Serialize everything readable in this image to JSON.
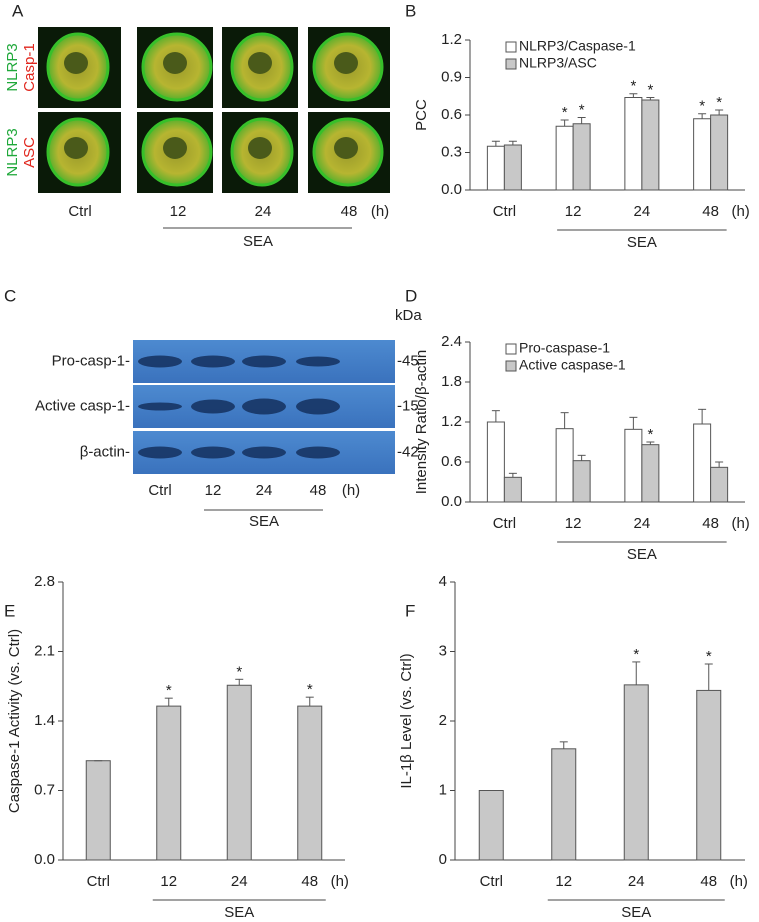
{
  "panel_a": {
    "label": "A",
    "rows": [
      [
        "NLRP3",
        "Casp-1"
      ],
      [
        "NLRP3",
        "ASC"
      ]
    ],
    "categories": [
      "Ctrl",
      "12",
      "24",
      "48"
    ],
    "unit": "(h)",
    "group_label": "SEA"
  },
  "panel_c": {
    "label": "C",
    "size_unit": "kDa",
    "rows": [
      {
        "name": "Pro-casp-1-",
        "size": "-45"
      },
      {
        "name": "Active casp-1-",
        "size": "-15"
      },
      {
        "name": "β-actin-",
        "size": "-42"
      }
    ],
    "categories": [
      "Ctrl",
      "12",
      "24",
      "48"
    ],
    "unit": "(h)",
    "group_label": "SEA"
  },
  "chart_data": [
    {
      "panel": "B",
      "type": "bar",
      "ylabel": "PCC",
      "categories": [
        "Ctrl",
        "12",
        "24",
        "48"
      ],
      "unit": "(h)",
      "group_label": "SEA",
      "ylim": [
        0,
        1.2
      ],
      "yticks": [
        {
          "value": 0,
          "label": "0.0"
        },
        0.3,
        0.6,
        0.9,
        1.2
      ],
      "legend": "upper left",
      "series": [
        {
          "name": "NLRP3/Caspase-1",
          "color": "#ffffff",
          "values": [
            0.35,
            0.51,
            0.74,
            0.57
          ],
          "errors": [
            0.04,
            0.05,
            0.03,
            0.04
          ],
          "markers": [
            null,
            "*",
            "*",
            "*"
          ]
        },
        {
          "name": "NLRP3/ASC",
          "color": "#c8c8c8",
          "values": [
            0.36,
            0.53,
            0.72,
            0.6
          ],
          "errors": [
            0.03,
            0.05,
            0.02,
            0.04
          ],
          "markers": [
            null,
            "*",
            "*",
            "*"
          ]
        }
      ]
    },
    {
      "panel": "D",
      "type": "bar",
      "ylabel": "Intensity Ratio/β-actin",
      "categories": [
        "Ctrl",
        "12",
        "24",
        "48"
      ],
      "unit": "(h)",
      "group_label": "SEA",
      "ylim": [
        0,
        2.4
      ],
      "yticks": [
        {
          "value": 0,
          "label": "0.0"
        },
        0.6,
        1.2,
        1.8,
        2.4
      ],
      "legend": "upper left",
      "series": [
        {
          "name": "Pro-caspase-1",
          "color": "#ffffff",
          "values": [
            1.2,
            1.1,
            1.09,
            1.17
          ],
          "errors": [
            0.17,
            0.24,
            0.18,
            0.22
          ],
          "markers": [
            null,
            null,
            null,
            null
          ]
        },
        {
          "name": "Active caspase-1",
          "color": "#c8c8c8",
          "values": [
            0.37,
            0.62,
            0.86,
            0.52
          ],
          "errors": [
            0.06,
            0.08,
            0.04,
            0.08
          ],
          "markers": [
            null,
            null,
            "*",
            null
          ]
        }
      ]
    },
    {
      "panel": "E",
      "type": "bar",
      "ylabel": "Caspase-1 Activity (vs. Ctrl)",
      "categories": [
        "Ctrl",
        "12",
        "24",
        "48"
      ],
      "unit": "(h)",
      "group_label": "SEA",
      "ylim": [
        0,
        2.8
      ],
      "yticks": [
        {
          "value": 0,
          "label": "0.0"
        },
        0.7,
        1.4,
        2.1,
        2.8
      ],
      "color": "#c8c8c8",
      "values": [
        1.0,
        1.55,
        1.76,
        1.55
      ],
      "errors": [
        0,
        0.08,
        0.06,
        0.09
      ],
      "markers": [
        null,
        "*",
        "*",
        "*"
      ]
    },
    {
      "panel": "F",
      "type": "bar",
      "ylabel": "IL-1β Level (vs. Ctrl)",
      "categories": [
        "Ctrl",
        "12",
        "24",
        "48"
      ],
      "unit": "(h)",
      "group_label": "SEA",
      "ylim": [
        0,
        4
      ],
      "yticks": [
        0,
        1,
        2,
        3,
        4
      ],
      "color": "#c8c8c8",
      "values": [
        1.0,
        1.6,
        2.52,
        2.44
      ],
      "errors": [
        0,
        0.1,
        0.33,
        0.38
      ],
      "markers": [
        null,
        null,
        "*",
        "*"
      ]
    }
  ]
}
